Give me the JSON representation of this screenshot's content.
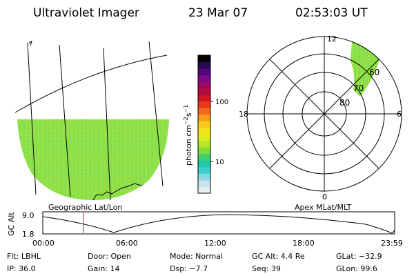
{
  "header": {
    "instrument": "Ultraviolet Imager",
    "date": "23 Mar 07",
    "time": "02:53:03 UT"
  },
  "geo_panel": {
    "label": "Geographic Lat/Lon"
  },
  "colorbar": {
    "unit_label": "photon cm",
    "exp1": "−2",
    "mid": "s",
    "exp2": "−1",
    "tick_100": "100",
    "tick_10": "10",
    "colors": [
      "#e8eef0",
      "#c8e4ea",
      "#8ad8e0",
      "#3ccfcf",
      "#20c8a8",
      "#40d070",
      "#7ede3c",
      "#b6e628",
      "#dcec20",
      "#f4e41c",
      "#f8c81c",
      "#f89c1c",
      "#f06a1c",
      "#e83a1c",
      "#d01420",
      "#b00c3c",
      "#9a0a66",
      "#7a0a8a",
      "#52087c",
      "#2a0650",
      "#000000"
    ]
  },
  "polar_panel": {
    "label": "Apex MLat/MLT",
    "mlt_12": "12",
    "mlt_18": "18",
    "mlt_6": "6",
    "mlt_0": "0",
    "lat_60": "60",
    "lat_70": "70",
    "lat_80": "80"
  },
  "altitude_plot": {
    "ylabel": "GC Alt",
    "y_max": "9.0",
    "y_min": "1.8",
    "x_ticks": [
      "00:00",
      "06:00",
      "12:00",
      "18:00",
      "23:59"
    ]
  },
  "info": {
    "flt": "Flt: LBHL",
    "ip": "IP: 36.0",
    "door": "Door: Open",
    "gain": "Gain: 14",
    "mode": "Mode: Normal",
    "dsp": "Dsp:   −7.7",
    "gcalt": "GC Alt: 4.4 Re",
    "seq": "Seq: 39",
    "glat": "GLat: −32.9",
    "glon": "GLon:  99.6"
  }
}
